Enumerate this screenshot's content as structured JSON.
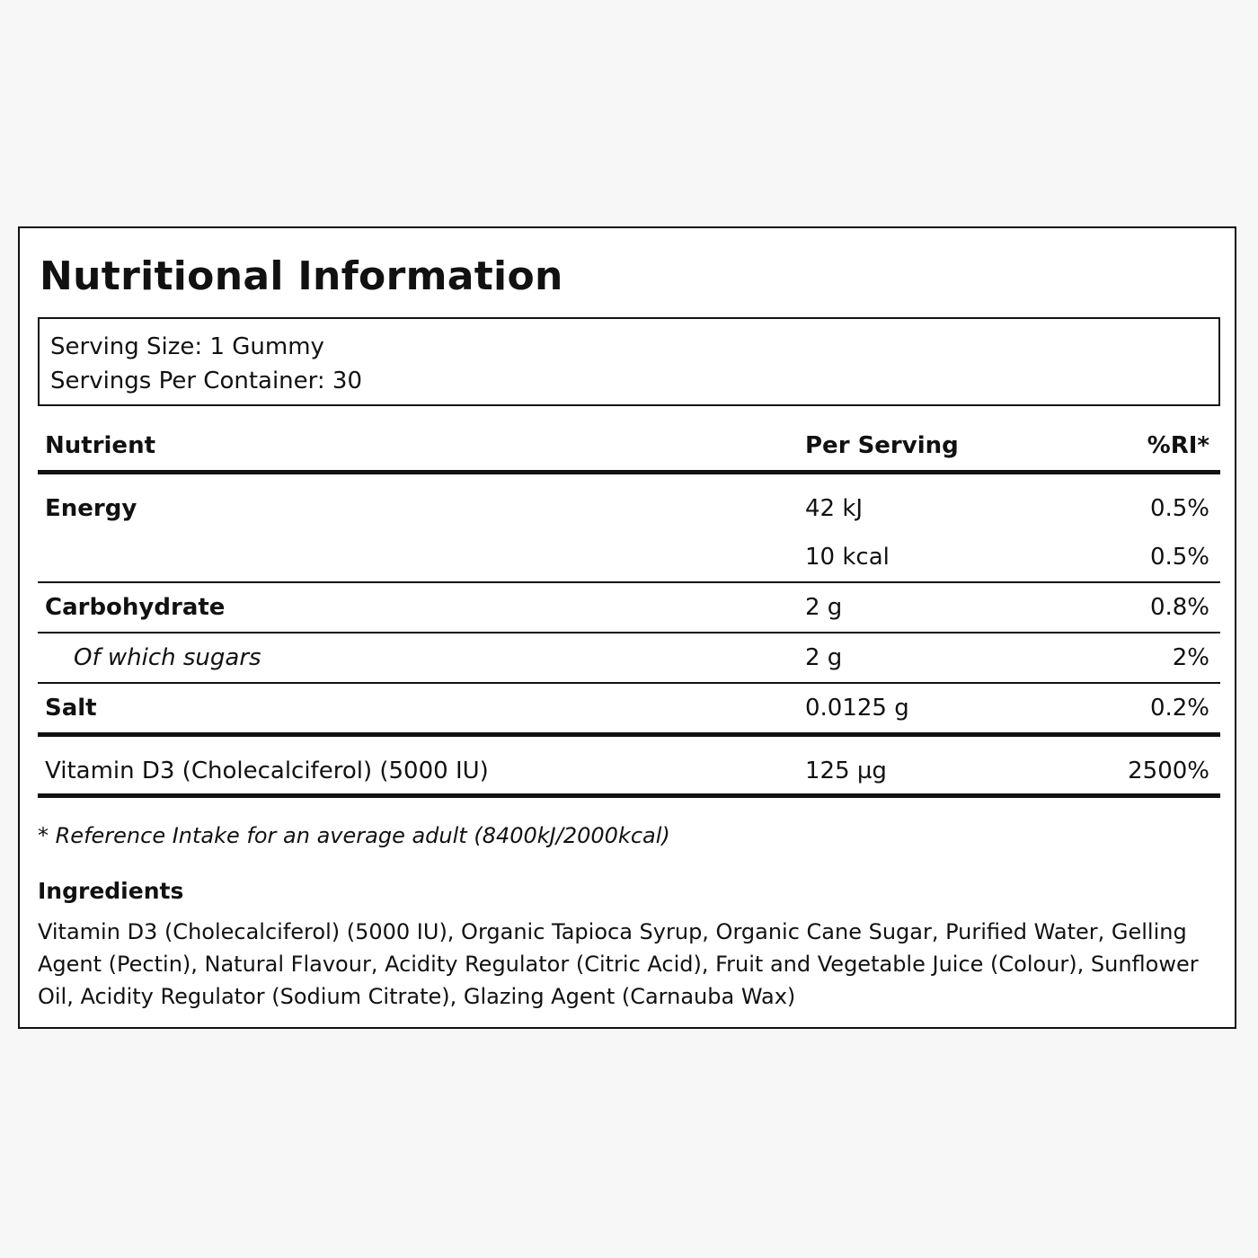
{
  "title": "Nutritional Information",
  "serving": {
    "size": "Serving Size: 1 Gummy",
    "per_container": "Servings Per Container: 30"
  },
  "table": {
    "headers": {
      "nutrient": "Nutrient",
      "per_serving": "Per Serving",
      "ri": "%RI*"
    },
    "rows": [
      {
        "name": "Energy",
        "per": "42 kJ",
        "ri": "0.5%"
      },
      {
        "name": "",
        "per": "10 kcal",
        "ri": "0.5%"
      },
      {
        "name": "Carbohydrate",
        "per": "2 g",
        "ri": "0.8%"
      },
      {
        "name": "Of which sugars",
        "per": "2 g",
        "ri": "2%"
      },
      {
        "name": "Salt",
        "per": "0.0125 g",
        "ri": "0.2%"
      },
      {
        "name": "Vitamin D3 (Cholecalciferol) (5000 IU)",
        "per": "125 µg",
        "ri": "2500%"
      }
    ]
  },
  "footnote": "* Reference Intake for an average adult (8400kJ/2000kcal)",
  "ingredients": {
    "heading": "Ingredients",
    "text": "Vitamin D3 (Cholecalciferol) (5000 IU), Organic Tapioca Syrup, Organic Cane Sugar, Purified Water, Gelling Agent (Pectin), Natural Flavour, Acidity Regulator (Citric Acid), Fruit and Vegetable Juice (Colour), Sunflower Oil, Acidity Regulator (Sodium Citrate), Glazing Agent (Carnauba Wax)"
  }
}
